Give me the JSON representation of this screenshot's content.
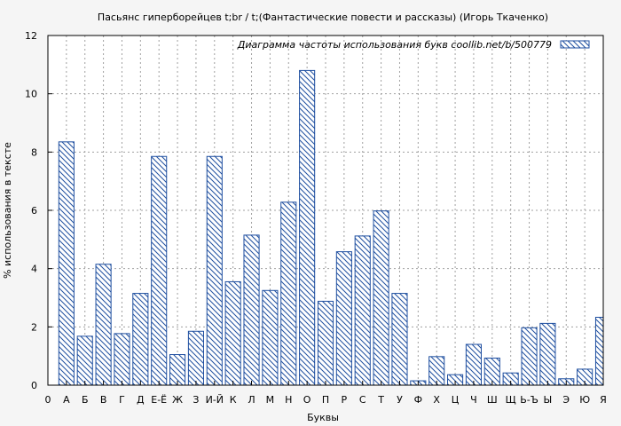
{
  "chart_data": {
    "type": "bar",
    "title": "Пасьянс гиперборейцев  t;br /   t;(Фантастические повести и рассказы) (Игорь Ткаченко)",
    "xlabel": "Буквы",
    "ylabel": "% использования в тексте",
    "ylim": [
      0,
      12
    ],
    "yticks": [
      "0",
      "2",
      "4",
      "6",
      "8",
      "10",
      "12"
    ],
    "x_first_tick": "0",
    "grid": true,
    "legend_position": "top-right",
    "legend": "Диаграмма частоты использования букв  coollib.net/b/500779",
    "colors": {
      "bar_stroke": "#1f4fa0",
      "hatch": "#1f4fa0",
      "background": "#f5f5f5",
      "plot_bg": "#ffffff",
      "grid": "#a0a0a0"
    },
    "categories": [
      "А",
      "Б",
      "В",
      "Г",
      "Д",
      "Е-Ё",
      "Ж",
      "З",
      "И-Й",
      "К",
      "Л",
      "М",
      "Н",
      "О",
      "П",
      "Р",
      "С",
      "Т",
      "У",
      "Ф",
      "Х",
      "Ц",
      "Ч",
      "Ш",
      "Щ",
      "Ь-Ъ",
      "Ы",
      "Э",
      "Ю",
      "Я"
    ],
    "values": [
      8.35,
      1.68,
      4.15,
      1.77,
      3.15,
      7.85,
      1.05,
      1.85,
      7.85,
      3.55,
      5.15,
      3.25,
      6.28,
      10.8,
      2.88,
      4.58,
      5.12,
      5.98,
      3.15,
      0.15,
      0.98,
      0.36,
      1.4,
      0.93,
      0.42,
      1.97,
      2.12,
      0.22,
      0.55,
      2.33
    ]
  }
}
